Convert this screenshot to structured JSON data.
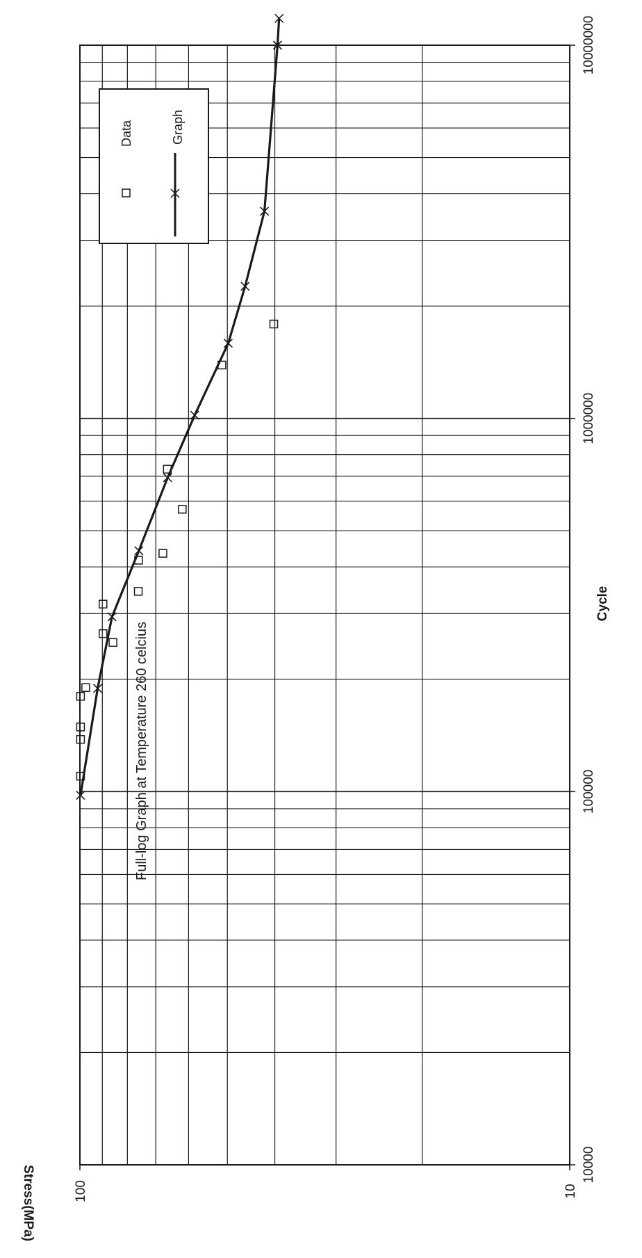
{
  "chart_data": {
    "type": "scatter",
    "title": "Full-log Graph at  Temperature 260 celcius",
    "xlabel": "Cycle",
    "ylabel": "Stress(MPa)",
    "x_scale": "log",
    "y_scale": "log",
    "xlim": [
      10000,
      10000000
    ],
    "ylim": [
      10,
      100
    ],
    "grid": true,
    "legend_position": "top-right",
    "x_tick_labels": [
      "10000",
      "100000",
      "1000000",
      "10000000"
    ],
    "y_tick_labels": [
      "100",
      "10"
    ],
    "series": [
      {
        "name": "Data",
        "marker": "square",
        "x": [
          110000,
          138000,
          149000,
          180000,
          190000,
          251000,
          265000,
          318000,
          344000,
          417000,
          435000,
          571000,
          731000,
          1390000,
          1790000
        ],
        "y": [
          99.7,
          99.7,
          99.7,
          99.7,
          97.3,
          85.6,
          89.7,
          89.7,
          76.0,
          75.9,
          67.7,
          61.8,
          66.3,
          51.3,
          40.2
        ]
      },
      {
        "name": "Graph",
        "marker": "x",
        "line": true,
        "x": [
          97800,
          189000,
          294000,
          442000,
          694000,
          1020000,
          1590000,
          2260000,
          3590000,
          10000000,
          11800000
        ],
        "y": [
          99.7,
          92.0,
          86.0,
          75.8,
          66.2,
          58.3,
          49.8,
          46.0,
          42.0,
          39.5,
          39.2
        ]
      }
    ]
  },
  "colors": {
    "ink": "#1a1a1a",
    "background": "#ffffff"
  }
}
